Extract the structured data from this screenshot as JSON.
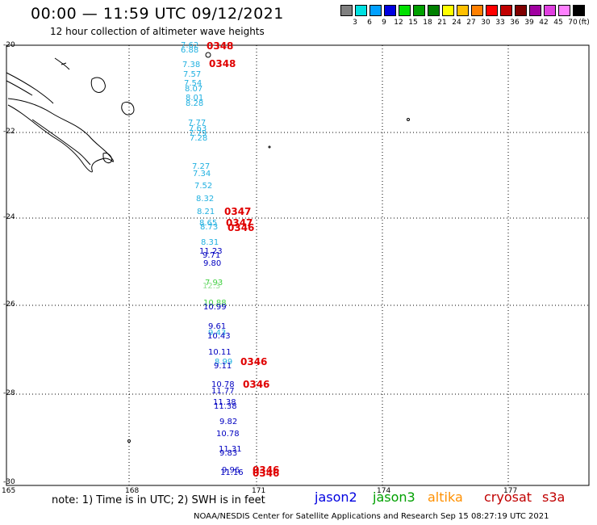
{
  "header": {
    "title": "00:00 — 11:59 UTC 09/12/2021",
    "subtitle": "12 hour collection of altimeter wave heights"
  },
  "legend": {
    "unit": "(ft)",
    "labels": [
      "3",
      "6",
      "9",
      "12",
      "15",
      "18",
      "21",
      "24",
      "27",
      "30",
      "33",
      "36",
      "39",
      "42",
      "45",
      "70"
    ],
    "colors": [
      "#808080",
      "#00e0e0",
      "#00a0ff",
      "#0000e0",
      "#00e000",
      "#00a000",
      "#008000",
      "#ffff00",
      "#ffc000",
      "#ff8000",
      "#ff0000",
      "#c00000",
      "#800000",
      "#a000a0",
      "#e040e0",
      "#ff80ff",
      "#000000"
    ]
  },
  "axes": {
    "lat_labels": [
      "-20",
      "-22",
      "-24",
      "-26",
      "-28",
      "-30"
    ],
    "lon_labels": [
      "165",
      "168",
      "171",
      "174",
      "177"
    ]
  },
  "observations": [
    {
      "v": "7.62",
      "c": "#20b0e0"
    },
    {
      "v": "6.88",
      "c": "#20b0e0"
    },
    {
      "v": "7.38",
      "c": "#20b0e0"
    },
    {
      "v": "7.57",
      "c": "#20b0e0"
    },
    {
      "v": "7.54",
      "c": "#20b0e0"
    },
    {
      "v": "8.07",
      "c": "#20b0e0"
    },
    {
      "v": "8.01",
      "c": "#20b0e0"
    },
    {
      "v": "8.28",
      "c": "#20b0e0"
    },
    {
      "v": "7.77",
      "c": "#20b0e0"
    },
    {
      "v": "7.63",
      "c": "#20b0e0"
    },
    {
      "v": "7.79",
      "c": "#20b0e0"
    },
    {
      "v": "7.28",
      "c": "#20b0e0"
    },
    {
      "v": "7.27",
      "c": "#20b0e0"
    },
    {
      "v": "7.34",
      "c": "#20b0e0"
    },
    {
      "v": "7.52",
      "c": "#20b0e0"
    },
    {
      "v": "8.32",
      "c": "#20b0e0"
    },
    {
      "v": "8.21",
      "c": "#20b0e0"
    },
    {
      "v": "8.65",
      "c": "#20b0e0"
    },
    {
      "v": "8.73",
      "c": "#20b0e0"
    },
    {
      "v": "8.31",
      "c": "#20b0e0"
    },
    {
      "v": "11.23",
      "c": "#0000c0"
    },
    {
      "v": "9.71",
      "c": "#0000c0"
    },
    {
      "v": "9.80",
      "c": "#0000c0"
    },
    {
      "v": "7.93",
      "c": "#40d040"
    },
    {
      "v": "12.3",
      "c": "#90e090"
    },
    {
      "v": "10.88",
      "c": "#40d040"
    },
    {
      "v": "10.99",
      "c": "#0000c0"
    },
    {
      "v": "9.61",
      "c": "#0000c0"
    },
    {
      "v": "9.43",
      "c": "#20b0e0"
    },
    {
      "v": "10.43",
      "c": "#0000c0"
    },
    {
      "v": "10.11",
      "c": "#0000c0"
    },
    {
      "v": "8.99",
      "c": "#20b0e0"
    },
    {
      "v": "9.11",
      "c": "#0000c0"
    },
    {
      "v": "10.78",
      "c": "#0000c0"
    },
    {
      "v": "11.77",
      "c": "#0000c0"
    },
    {
      "v": "11.38",
      "c": "#0000c0"
    },
    {
      "v": "11.38",
      "c": "#0000c0"
    },
    {
      "v": "9.82",
      "c": "#0000c0"
    },
    {
      "v": "10.78",
      "c": "#0000c0"
    },
    {
      "v": "11.31",
      "c": "#0000c0"
    },
    {
      "v": "9.83",
      "c": "#0000c0"
    },
    {
      "v": "9.96",
      "c": "#0000c0"
    },
    {
      "v": "11.16",
      "c": "#0000c0"
    }
  ],
  "pass_times": [
    "0348",
    "0348",
    "0347",
    "0347",
    "0346",
    "0346",
    "0346",
    "0346",
    "0346"
  ],
  "footer": {
    "note": "note: 1) Time is in UTC; 2) SWH is in feet",
    "satellites": [
      {
        "name": "jason2",
        "color": "#0000e0"
      },
      {
        "name": "jason3",
        "color": "#00a000"
      },
      {
        "name": "altika",
        "color": "#ff9000"
      },
      {
        "name": "cryosat",
        "color": "#c00000"
      },
      {
        "name": "s3a",
        "color": "#c00000"
      }
    ],
    "credit": "NOAA/NESDIS Center for Satellite Applications and Research   Sep 15 08:27:19 UTC 2021"
  }
}
